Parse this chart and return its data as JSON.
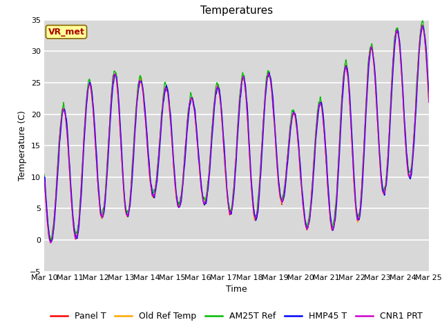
{
  "title": "Temperatures",
  "xlabel": "Time",
  "ylabel": "Temperature (C)",
  "ylim": [
    -5,
    35
  ],
  "background_color": "#d8d8d8",
  "plot_bg_color": "#d8d8d8",
  "grid_color": "#ffffff",
  "legend_labels": [
    "Panel T",
    "Old Ref Temp",
    "AM25T Ref",
    "HMP45 T",
    "CNR1 PRT"
  ],
  "legend_colors": [
    "#ff0000",
    "#ffa500",
    "#00bb00",
    "#0000ff",
    "#cc00cc"
  ],
  "xtick_labels": [
    "Mar 10",
    "Mar 11",
    "Mar 12",
    "Mar 13",
    "Mar 14",
    "Mar 15",
    "Mar 16",
    "Mar 17",
    "Mar 18",
    "Mar 19",
    "Mar 20",
    "Mar 21",
    "Mar 22",
    "Mar 23",
    "Mar 24",
    "Mar 25"
  ],
  "annotation_text": "VR_met",
  "annotation_color": "#aa0000",
  "annotation_bg": "#ffff99",
  "annotation_border": "#886600",
  "title_fontsize": 11,
  "axis_fontsize": 9,
  "tick_fontsize": 8,
  "legend_fontsize": 9
}
